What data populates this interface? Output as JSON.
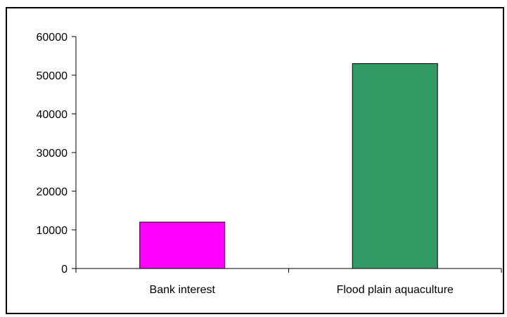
{
  "chart_data": {
    "type": "bar",
    "categories": [
      "Bank interest",
      "Flood plain aquaculture"
    ],
    "values": [
      12000,
      53000
    ],
    "title": "",
    "xlabel": "",
    "ylabel": "",
    "ylim": [
      0,
      60000
    ],
    "yticks": [
      0,
      10000,
      20000,
      30000,
      40000,
      50000,
      60000
    ],
    "ytick_labels": [
      "0",
      "10000",
      "20000",
      "30000",
      "40000",
      "50000",
      "60000"
    ],
    "bar_colors": [
      "#ff00ff",
      "#339966"
    ],
    "grid": false,
    "legend": "none"
  }
}
